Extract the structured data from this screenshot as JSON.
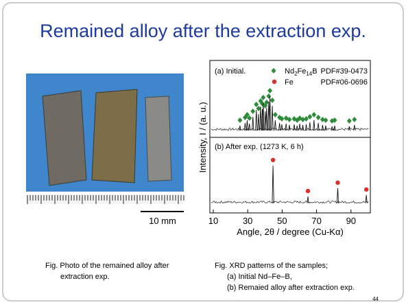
{
  "title": "Remained alloy after the extraction exp.",
  "photo": {
    "scale_label": "10 mm",
    "caption": [
      "Fig. Photo of the remained alloy after",
      "extraction exp."
    ]
  },
  "xrd": {
    "type": "line",
    "x_label": "Angle, 2θ / degree (Cu-Kα)",
    "y_label": "Intensity, I / (a. u.)",
    "xlim": [
      10,
      100
    ],
    "xticks": [
      10,
      30,
      50,
      70,
      90
    ],
    "legend": {
      "nd_formula": [
        "Nd",
        "2",
        "Fe",
        "14",
        "B"
      ],
      "nd_pdf": "PDF#39-0473",
      "fe_name": "Fe",
      "fe_pdf": "PDF#06-0696"
    },
    "panels": [
      {
        "label": "(a) Initial.",
        "color": "#2e8b3a",
        "marker": "diamond",
        "x": [
          25.5,
          28.5,
          29.7,
          31.0,
          33.0,
          35.0,
          36.3,
          37.5,
          38.5,
          39.0,
          40.2,
          41.0,
          42.2,
          42.9,
          44.3,
          46.0,
          48.5,
          49.8,
          52.3,
          54.2,
          57.0,
          58.7,
          60.2,
          62.0,
          64.0,
          66.1,
          68.5,
          71.0,
          73.5,
          75.3,
          79.0,
          80.5,
          89.0,
          92.0
        ],
        "values": [
          14,
          22,
          30,
          20,
          40,
          60,
          48,
          70,
          62,
          80,
          56,
          66,
          84,
          100,
          72,
          30,
          22,
          18,
          20,
          16,
          18,
          14,
          20,
          16,
          18,
          24,
          30,
          22,
          16,
          14,
          12,
          14,
          12,
          16
        ]
      },
      {
        "label": "(b) After exp. (1273 K, 6 h)",
        "color": "#d9302c",
        "marker": "circle",
        "x": [
          44.7,
          65.0,
          82.3,
          98.9
        ],
        "values": [
          100,
          18,
          40,
          22
        ]
      }
    ]
  },
  "xrd_caption": [
    "Fig. XRD patterns of the samples;",
    "(a) Initial Nd–Fe–B,",
    "(b) Remaied alloy after extraction exp."
  ],
  "page_number": "44"
}
